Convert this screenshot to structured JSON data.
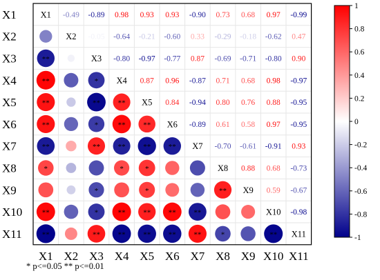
{
  "chart_data": {
    "type": "heatmap",
    "variables": [
      "X1",
      "X2",
      "X3",
      "X4",
      "X5",
      "X6",
      "X7",
      "X8",
      "X9",
      "X10",
      "X11"
    ],
    "matrix": [
      [
        1,
        -0.49,
        -0.89,
        0.98,
        0.93,
        0.93,
        -0.9,
        0.73,
        0.68,
        0.97,
        -0.99
      ],
      [
        -0.49,
        1,
        -0.05,
        -0.64,
        -0.21,
        -0.6,
        0.33,
        -0.29,
        -0.18,
        -0.62,
        0.47
      ],
      [
        -0.89,
        -0.05,
        1,
        -0.8,
        -0.97,
        -0.77,
        0.87,
        -0.69,
        -0.71,
        -0.8,
        0.9
      ],
      [
        0.98,
        -0.64,
        -0.8,
        1,
        0.87,
        0.96,
        -0.87,
        0.71,
        0.68,
        0.98,
        -0.97
      ],
      [
        0.93,
        -0.21,
        -0.97,
        0.87,
        1,
        0.84,
        -0.94,
        0.8,
        0.76,
        0.88,
        -0.95
      ],
      [
        0.93,
        -0.6,
        -0.77,
        0.96,
        0.84,
        1,
        -0.89,
        0.61,
        0.58,
        0.97,
        -0.95
      ],
      [
        -0.9,
        0.33,
        0.87,
        -0.87,
        -0.94,
        -0.89,
        1,
        -0.7,
        -0.61,
        -0.91,
        0.93
      ],
      [
        0.73,
        -0.29,
        -0.69,
        0.71,
        0.8,
        0.61,
        -0.7,
        1,
        0.88,
        0.68,
        -0.73
      ],
      [
        0.68,
        -0.18,
        -0.71,
        0.68,
        0.76,
        0.58,
        -0.61,
        0.88,
        1,
        0.59,
        -0.67
      ],
      [
        0.97,
        -0.62,
        -0.8,
        0.98,
        0.88,
        0.97,
        -0.91,
        0.68,
        0.59,
        1,
        -0.98
      ],
      [
        -0.99,
        0.47,
        0.9,
        -0.97,
        -0.95,
        -0.95,
        0.93,
        -0.73,
        -0.67,
        -0.98,
        1
      ]
    ],
    "value_text": [
      [
        null,
        "-0.49",
        "-0.89",
        "0.98",
        "0.93",
        "0.93",
        "-0.90",
        "0.73",
        "0.68",
        "0.97",
        "-0.99"
      ],
      [
        null,
        null,
        "-0.05",
        "-0.64",
        "-0.21",
        "-0.60",
        "0.33",
        "-0.29",
        "-0.18",
        "-0.62",
        "0.47"
      ],
      [
        null,
        null,
        null,
        "-0.80",
        "-0.97",
        "-0.77",
        "0.87",
        "-0.69",
        "-0.71",
        "-0.80",
        "0.90"
      ],
      [
        null,
        null,
        null,
        null,
        "0.87",
        "0.96",
        "-0.87",
        "0.71",
        "0.68",
        "0.98",
        "-0.97"
      ],
      [
        null,
        null,
        null,
        null,
        null,
        "0.84",
        "-0.94",
        "0.80",
        "0.76",
        "0.88",
        "-0.95"
      ],
      [
        null,
        null,
        null,
        null,
        null,
        null,
        "-0.89",
        "0.61",
        "0.58",
        "0.97",
        "-0.95"
      ],
      [
        null,
        null,
        null,
        null,
        null,
        null,
        null,
        "-0.70",
        "-0.61",
        "-0.91",
        "0.93"
      ],
      [
        null,
        null,
        null,
        null,
        null,
        null,
        null,
        null,
        "0.88",
        "0.68",
        "-0.73"
      ],
      [
        null,
        null,
        null,
        null,
        null,
        null,
        null,
        null,
        null,
        "0.59",
        "-0.67"
      ],
      [
        null,
        null,
        null,
        null,
        null,
        null,
        null,
        null,
        null,
        null,
        "-0.98"
      ],
      [
        null,
        null,
        null,
        null,
        null,
        null,
        null,
        null,
        null,
        null,
        null
      ]
    ],
    "significance": [
      [
        "",
        "",
        "",
        "",
        "",
        "",
        "",
        "",
        "",
        "",
        ""
      ],
      [
        "",
        "",
        "",
        "",
        "",
        "",
        "",
        "",
        "",
        "",
        ""
      ],
      [
        "**",
        "",
        "",
        "",
        "",
        "",
        "",
        "",
        "",
        "",
        ""
      ],
      [
        "**",
        "",
        "*",
        "",
        "",
        "",
        "",
        "",
        "",
        "",
        ""
      ],
      [
        "**",
        "",
        "**",
        "**",
        "",
        "",
        "",
        "",
        "",
        "",
        ""
      ],
      [
        "**",
        "",
        "*",
        "**",
        "**",
        "",
        "",
        "",
        "",
        "",
        ""
      ],
      [
        "**",
        "",
        "**",
        "**",
        "**",
        "**",
        "",
        "",
        "",
        "",
        ""
      ],
      [
        "*",
        "",
        "",
        "*",
        "*",
        "",
        "",
        "",
        "",
        "",
        ""
      ],
      [
        "",
        "",
        "*",
        "",
        "*",
        "",
        "",
        "**",
        "",
        "",
        ""
      ],
      [
        "**",
        "",
        "*",
        "**",
        "**",
        "**",
        "**",
        "",
        "",
        "",
        ""
      ],
      [
        "**",
        "",
        "**",
        "**",
        "**",
        "**",
        "**",
        "*",
        "",
        "**",
        ""
      ]
    ],
    "colorbar": {
      "min": -1,
      "max": 1,
      "ticks": [
        1,
        0.8,
        0.6,
        0.4,
        0.2,
        0,
        -0.2,
        -0.4,
        -0.6,
        -0.8,
        -1
      ],
      "tick_labels": [
        "1",
        "0.8",
        "0.6",
        "0.4",
        "0.2",
        "0",
        "-0.2",
        "-0.4",
        "-0.6",
        "-0.8",
        "-1"
      ],
      "colors": {
        "negative": "#00008b",
        "neutral": "#ffffff",
        "positive": "#ff0000"
      },
      "position": "right"
    },
    "footnote": "* p<=0.05  ** p<=0.01",
    "grid": true
  }
}
